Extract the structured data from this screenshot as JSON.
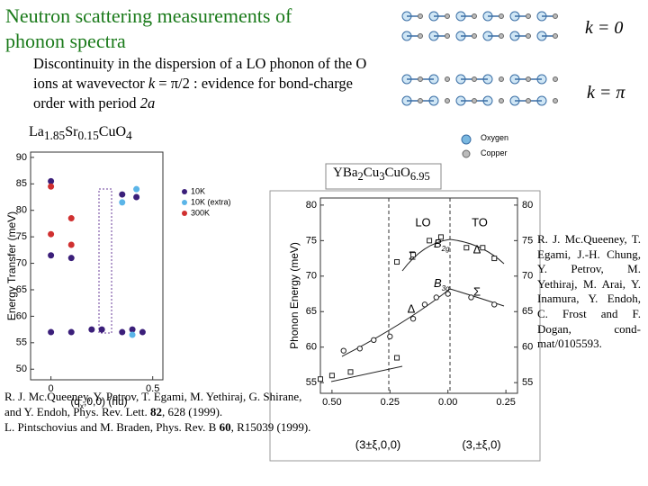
{
  "header": {
    "title": [
      "Neutron scattering measurements of",
      "phonon spectra"
    ],
    "subtitle": [
      "Discontinuity in the dispersion of a LO phonon of the O ions at wavevector ",
      "k",
      " = π/2 : evidence for bond-charge order with period ",
      "2a"
    ]
  },
  "diagram": {
    "k0": "k = 0",
    "kpi": "k = π",
    "oxygen": "Oxygen",
    "copper": "Copper"
  },
  "formula_left": [
    "La",
    "1.85",
    "Sr",
    "0.15",
    "CuO",
    "4"
  ],
  "formula_right": [
    "YBa",
    "2",
    "Cu",
    "3",
    "CuO",
    "6.95"
  ],
  "chart_data": [
    {
      "type": "scatter",
      "ylabel": "Energy Transfer (meV)",
      "xlabel": [
        "(q",
        "x",
        ",0,0) (rlu)"
      ],
      "xlim": [
        -0.1,
        0.55
      ],
      "ylim": [
        48,
        91
      ],
      "xticks": [
        0,
        0.5
      ],
      "yticks": [
        50,
        55,
        60,
        65,
        70,
        75,
        80,
        85,
        90
      ],
      "series": [
        {
          "name": "10K",
          "color": "#3b1f7a",
          "x": [
            0,
            0,
            0,
            0.1,
            0.1,
            0.2,
            0.25,
            0.35,
            0.4,
            0.45,
            0.35,
            0.42
          ],
          "values": [
            85.5,
            71.5,
            57,
            71,
            57,
            57.5,
            57.5,
            57,
            57.5,
            57,
            83,
            82.5
          ]
        },
        {
          "name": "10K (extra)",
          "color": "#5bb5e8",
          "x": [
            0.35,
            0.42,
            0.4
          ],
          "values": [
            81.5,
            84,
            56.5
          ]
        },
        {
          "name": "300K",
          "color": "#d03030",
          "x": [
            0,
            0,
            0.1,
            0.1
          ],
          "values": [
            84.5,
            75.5,
            73.5,
            78.5
          ]
        }
      ]
    },
    {
      "type": "scatter",
      "ylabel": "Phonon Energy (meV)",
      "xlabel_left": "(3±ξ,0,0)",
      "xlabel_right": "(3,±ξ,0)",
      "xlim": [
        -0.55,
        0.3
      ],
      "ylim": [
        53.5,
        81
      ],
      "xticks": [
        {
          "value": -0.5,
          "label": "0.50"
        },
        {
          "value": -0.25,
          "label": "0.25"
        },
        {
          "value": 0,
          "label": "0.00"
        },
        {
          "value": 0.25,
          "label": "0.25"
        }
      ],
      "yticks": [
        55,
        60,
        65,
        70,
        75,
        80
      ],
      "annotations": [
        "LO",
        "TO",
        "Σ",
        "Δ",
        "Σ",
        "Δ"
      ],
      "b_labels": [
        {
          "text": "B",
          "sub": "2g"
        },
        {
          "text": "B",
          "sub": "3g"
        }
      ],
      "series": [
        {
          "color": "#222222",
          "x": [
            -0.55,
            -0.5,
            -0.42,
            -0.22,
            -0.22,
            -0.15,
            -0.08,
            -0.03,
            0.08,
            0.15,
            0.2
          ],
          "values": [
            55.5,
            56,
            56.5,
            58.5,
            72,
            73,
            75,
            75.5,
            74,
            74,
            72.5
          ]
        },
        {
          "color": "#222222",
          "x": [
            -0.45,
            -0.38,
            -0.32,
            -0.25,
            -0.15,
            -0.1,
            -0.05,
            0,
            0.1,
            0.2
          ],
          "values": [
            59.5,
            59.8,
            61,
            61.5,
            64,
            66,
            67,
            67.5,
            67,
            66
          ]
        }
      ]
    }
  ],
  "refs": {
    "right": "R. J. Mc.Queeney, T. Egami, J.-H. Chung, Y. Petrov, M. Yethiraj, M. Arai, Y. Inamura, Y. Endoh, C. Frost and F. Dogan, cond-mat/0105593.",
    "left1": [
      "R. J. Mc.Queeney, Y. Petrov, T. Egami, M. Yethiraj, G. Shirane, and Y. Endoh, Phys. Rev. Lett. ",
      "82",
      ", 628 (1999)."
    ],
    "left2": [
      "L. Pintschovius and M. Braden, Phys. Rev. B ",
      "60",
      ", R15039 (1999)."
    ]
  }
}
